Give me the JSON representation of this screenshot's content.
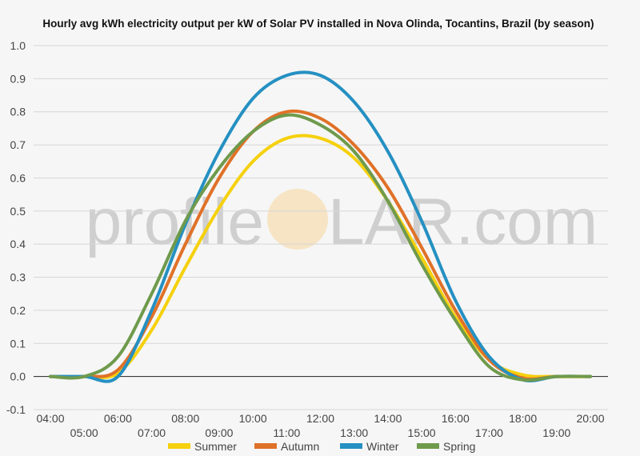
{
  "chart_data": {
    "type": "line",
    "title": "Hourly avg kWh electricity output per kW of Solar PV installed in Nova Olinda, Tocantins, Brazil (by season)",
    "watermark": {
      "left": "profile",
      "right": "LAR.com",
      "sun_color": "#f5deb3"
    },
    "xlabel": "",
    "ylabel": "",
    "x": [
      "04:00",
      "05:00",
      "06:00",
      "07:00",
      "08:00",
      "09:00",
      "10:00",
      "11:00",
      "12:00",
      "13:00",
      "14:00",
      "15:00",
      "16:00",
      "17:00",
      "18:00",
      "19:00",
      "20:00"
    ],
    "ylim": [
      -0.1,
      1.0
    ],
    "yticks": [
      "1.0",
      "0.9",
      "0.8",
      "0.7",
      "0.6",
      "0.5",
      "0.4",
      "0.3",
      "0.2",
      "0.1",
      "0.0",
      "-0.1"
    ],
    "ytick_values": [
      1.0,
      0.9,
      0.8,
      0.7,
      0.6,
      0.5,
      0.4,
      0.3,
      0.2,
      0.1,
      0.0,
      -0.1
    ],
    "grid": true,
    "legend_position": "bottom",
    "series": [
      {
        "name": "Summer",
        "color": "#f5d10e",
        "values": [
          0.0,
          0.0,
          0.01,
          0.14,
          0.33,
          0.51,
          0.65,
          0.72,
          0.72,
          0.66,
          0.53,
          0.36,
          0.18,
          0.05,
          0.005,
          0.0,
          0.0
        ]
      },
      {
        "name": "Autumn",
        "color": "#e07128",
        "values": [
          0.0,
          0.0,
          0.02,
          0.18,
          0.4,
          0.6,
          0.74,
          0.8,
          0.78,
          0.7,
          0.57,
          0.39,
          0.2,
          0.05,
          -0.005,
          0.0,
          0.0
        ]
      },
      {
        "name": "Winter",
        "color": "#2590c2",
        "values": [
          0.0,
          0.0,
          0.0,
          0.2,
          0.46,
          0.68,
          0.84,
          0.91,
          0.91,
          0.83,
          0.68,
          0.47,
          0.23,
          0.06,
          -0.01,
          0.0,
          0.0
        ]
      },
      {
        "name": "Spring",
        "color": "#6f9a4c",
        "values": [
          0.0,
          0.0,
          0.06,
          0.25,
          0.47,
          0.63,
          0.74,
          0.79,
          0.76,
          0.68,
          0.53,
          0.34,
          0.17,
          0.03,
          -0.01,
          0.0,
          0.0
        ]
      }
    ]
  }
}
